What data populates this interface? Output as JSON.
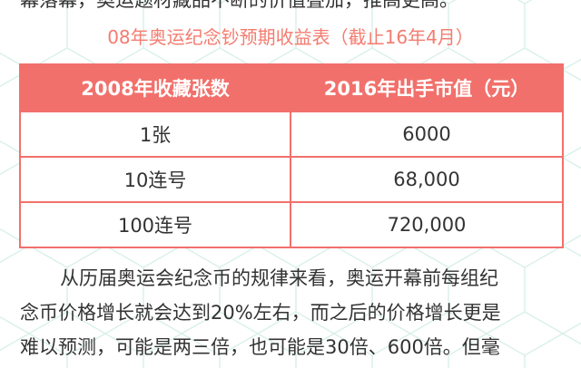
{
  "article": {
    "top_line": "幕落幕，奥运题材藏品不断的价值叠加，推高更高。",
    "table_title": "08年奥运纪念钞预期收益表（截止16年4月）",
    "paragraph_lines": [
      "从历届奥运会纪念币的规律来看，奥运开幕前每组纪",
      "念币价格增长就会达到20%左右，而之后的价格增长更是",
      "难以预测，可能是两三倍，也可能是30倍、600倍。但毫"
    ]
  },
  "table": {
    "headers": [
      "2008年收藏张数",
      "2016年出手市值（元）"
    ],
    "rows": [
      [
        "1张",
        "6000"
      ],
      [
        "10连号",
        "68,000"
      ],
      [
        "100连号",
        "720,000"
      ]
    ]
  },
  "colors": {
    "accent": "#f2706b",
    "title_text": "#f47c70",
    "body_text": "#333333",
    "pattern_line": "#d8f0ea"
  }
}
